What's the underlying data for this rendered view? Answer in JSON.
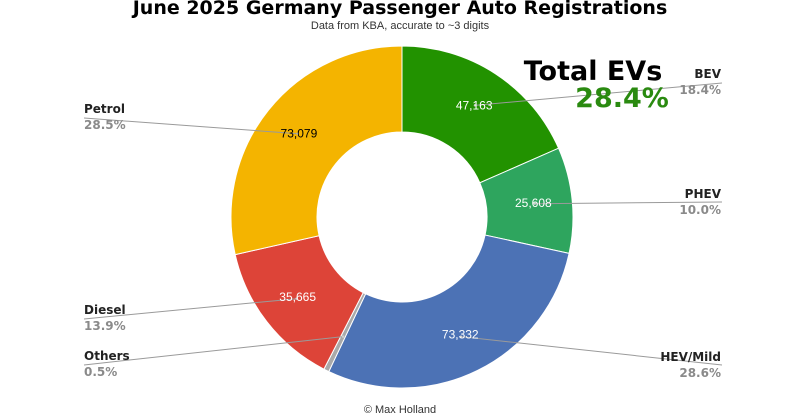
{
  "chart_data": {
    "type": "pie",
    "title": "June 2025 Germany Passenger Auto Registrations",
    "subtitle": "Data from KBA, accurate to ~3 digits",
    "slices": [
      {
        "label": "BEV",
        "value": 47163,
        "value_label": "47,163",
        "percent_label": "18.4%",
        "color": "#229200",
        "value_color": "#ffffff"
      },
      {
        "label": "PHEV",
        "value": 25608,
        "value_label": "25,608",
        "percent_label": "10.0%",
        "color": "#2ea55e",
        "value_color": "#ffffff"
      },
      {
        "label": "HEV/Mild",
        "value": 73332,
        "value_label": "73,332",
        "percent_label": "28.6%",
        "color": "#4c72b5",
        "value_color": "#ffffff"
      },
      {
        "label": "Others",
        "value": 1300,
        "value_label": "",
        "percent_label": "0.5%",
        "color": "#a9a9a9",
        "value_color": "#ffffff"
      },
      {
        "label": "Diesel",
        "value": 35665,
        "value_label": "35,665",
        "percent_label": "13.9%",
        "color": "#dd4438",
        "value_color": "#ffffff"
      },
      {
        "label": "Petrol",
        "value": 73079,
        "value_label": "73,079",
        "percent_label": "28.5%",
        "color": "#f4b400",
        "value_color": "#000000"
      }
    ],
    "donut": true,
    "start_angle_deg": 0,
    "direction": "clockwise",
    "annotation": {
      "label": "Total EVs",
      "value": "28.4%",
      "value_color": "#2a8a10"
    },
    "credit": "© Max Holland"
  }
}
